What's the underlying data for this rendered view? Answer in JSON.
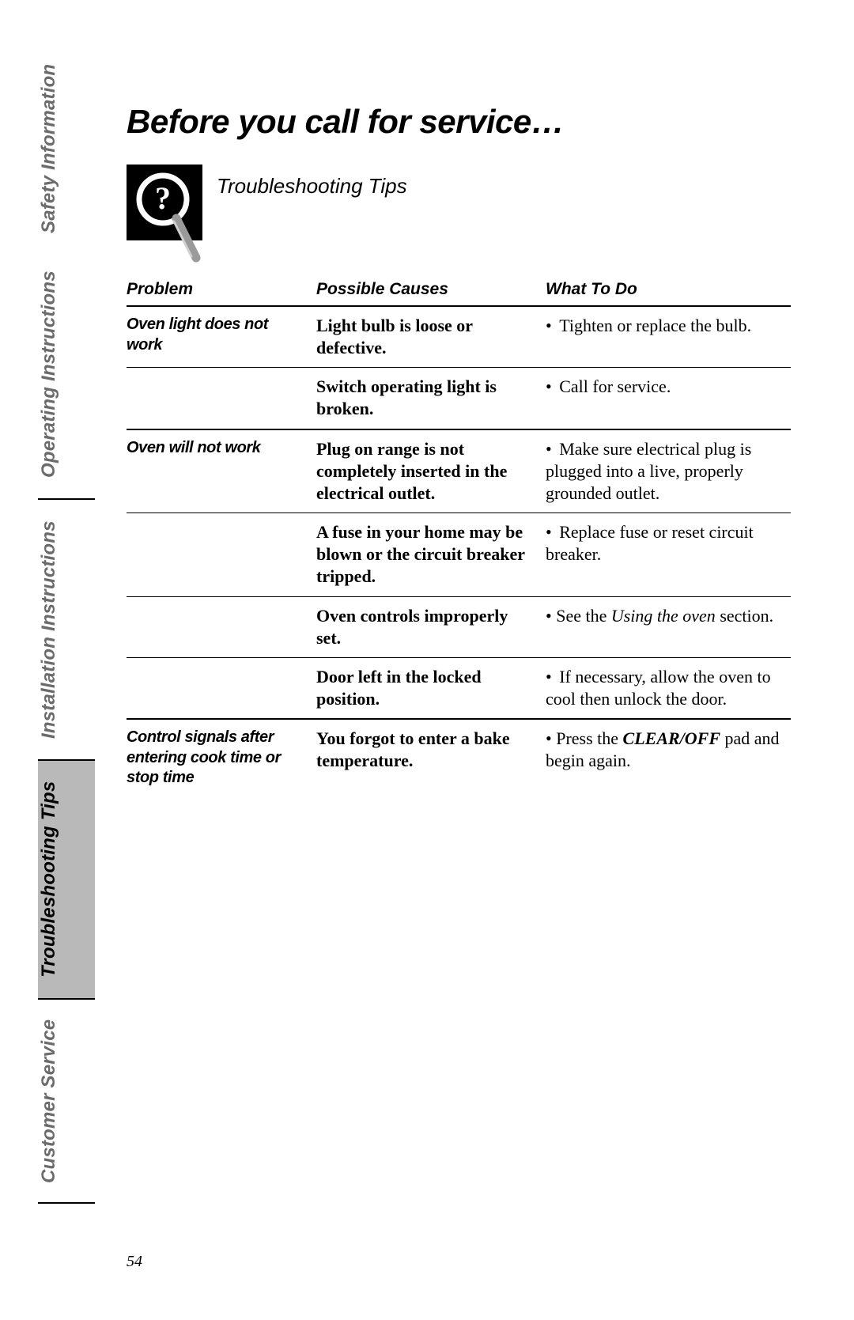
{
  "page": {
    "title": "Before you call for service…",
    "subtitle": "Troubleshooting Tips",
    "page_number": "54",
    "colors": {
      "tab_active_bg": "#b9b9b9",
      "tab_inactive_text": "#6b6b6b",
      "text": "#000000",
      "background": "#ffffff"
    },
    "fonts": {
      "heading_family": "Arial",
      "body_family": "Georgia",
      "title_size_pt": 32,
      "subtitle_size_pt": 20,
      "table_header_size_pt": 16,
      "body_size_pt": 17,
      "tab_size_pt": 18
    }
  },
  "tabs": [
    {
      "label": "Safety Information",
      "active": false
    },
    {
      "label": "Operating Instructions",
      "active": false
    },
    {
      "label": "Installation Instructions",
      "active": false
    },
    {
      "label": "Troubleshooting Tips",
      "active": true
    },
    {
      "label": "Customer Service",
      "active": false
    }
  ],
  "table": {
    "headers": {
      "problem": "Problem",
      "cause": "Possible Causes",
      "action": "What To Do"
    },
    "rows": [
      {
        "problem": "Oven light does not work",
        "cause": "Light bulb is loose or defective.",
        "action": "Tighten or replace the bulb.",
        "action_prefix": "• "
      },
      {
        "problem": "",
        "cause": "Switch operating light is broken.",
        "action": "Call for service.",
        "action_prefix": "• "
      },
      {
        "problem": "Oven will not work",
        "cause": "Plug on range is not completely inserted in the electrical outlet.",
        "action": "Make sure electrical plug is plugged into a live, properly grounded outlet.",
        "action_prefix": "• "
      },
      {
        "problem": "",
        "cause": "A fuse in your home may be blown or the circuit breaker tripped.",
        "action": "Replace fuse or reset circuit breaker.",
        "action_prefix": "• "
      },
      {
        "problem": "",
        "cause": "Oven controls improperly set.",
        "action_html": "• See the <span class=\"it\">Using the oven</span> section."
      },
      {
        "problem": "",
        "cause": "Door left in the locked position.",
        "action": "If necessary, allow the oven to cool then unlock the door.",
        "action_prefix": "• "
      },
      {
        "problem": "Control signals after entering cook time or stop time",
        "cause": "You forgot to enter a bake temperature.",
        "action_html": "• Press the <span class=\"bolditalic\">CLEAR/OFF</span> pad and begin again."
      }
    ]
  },
  "icon": {
    "name": "question-magnifier-icon",
    "bg": "#000000",
    "fg": "#ffffff",
    "handle": "#9a9a9a"
  }
}
